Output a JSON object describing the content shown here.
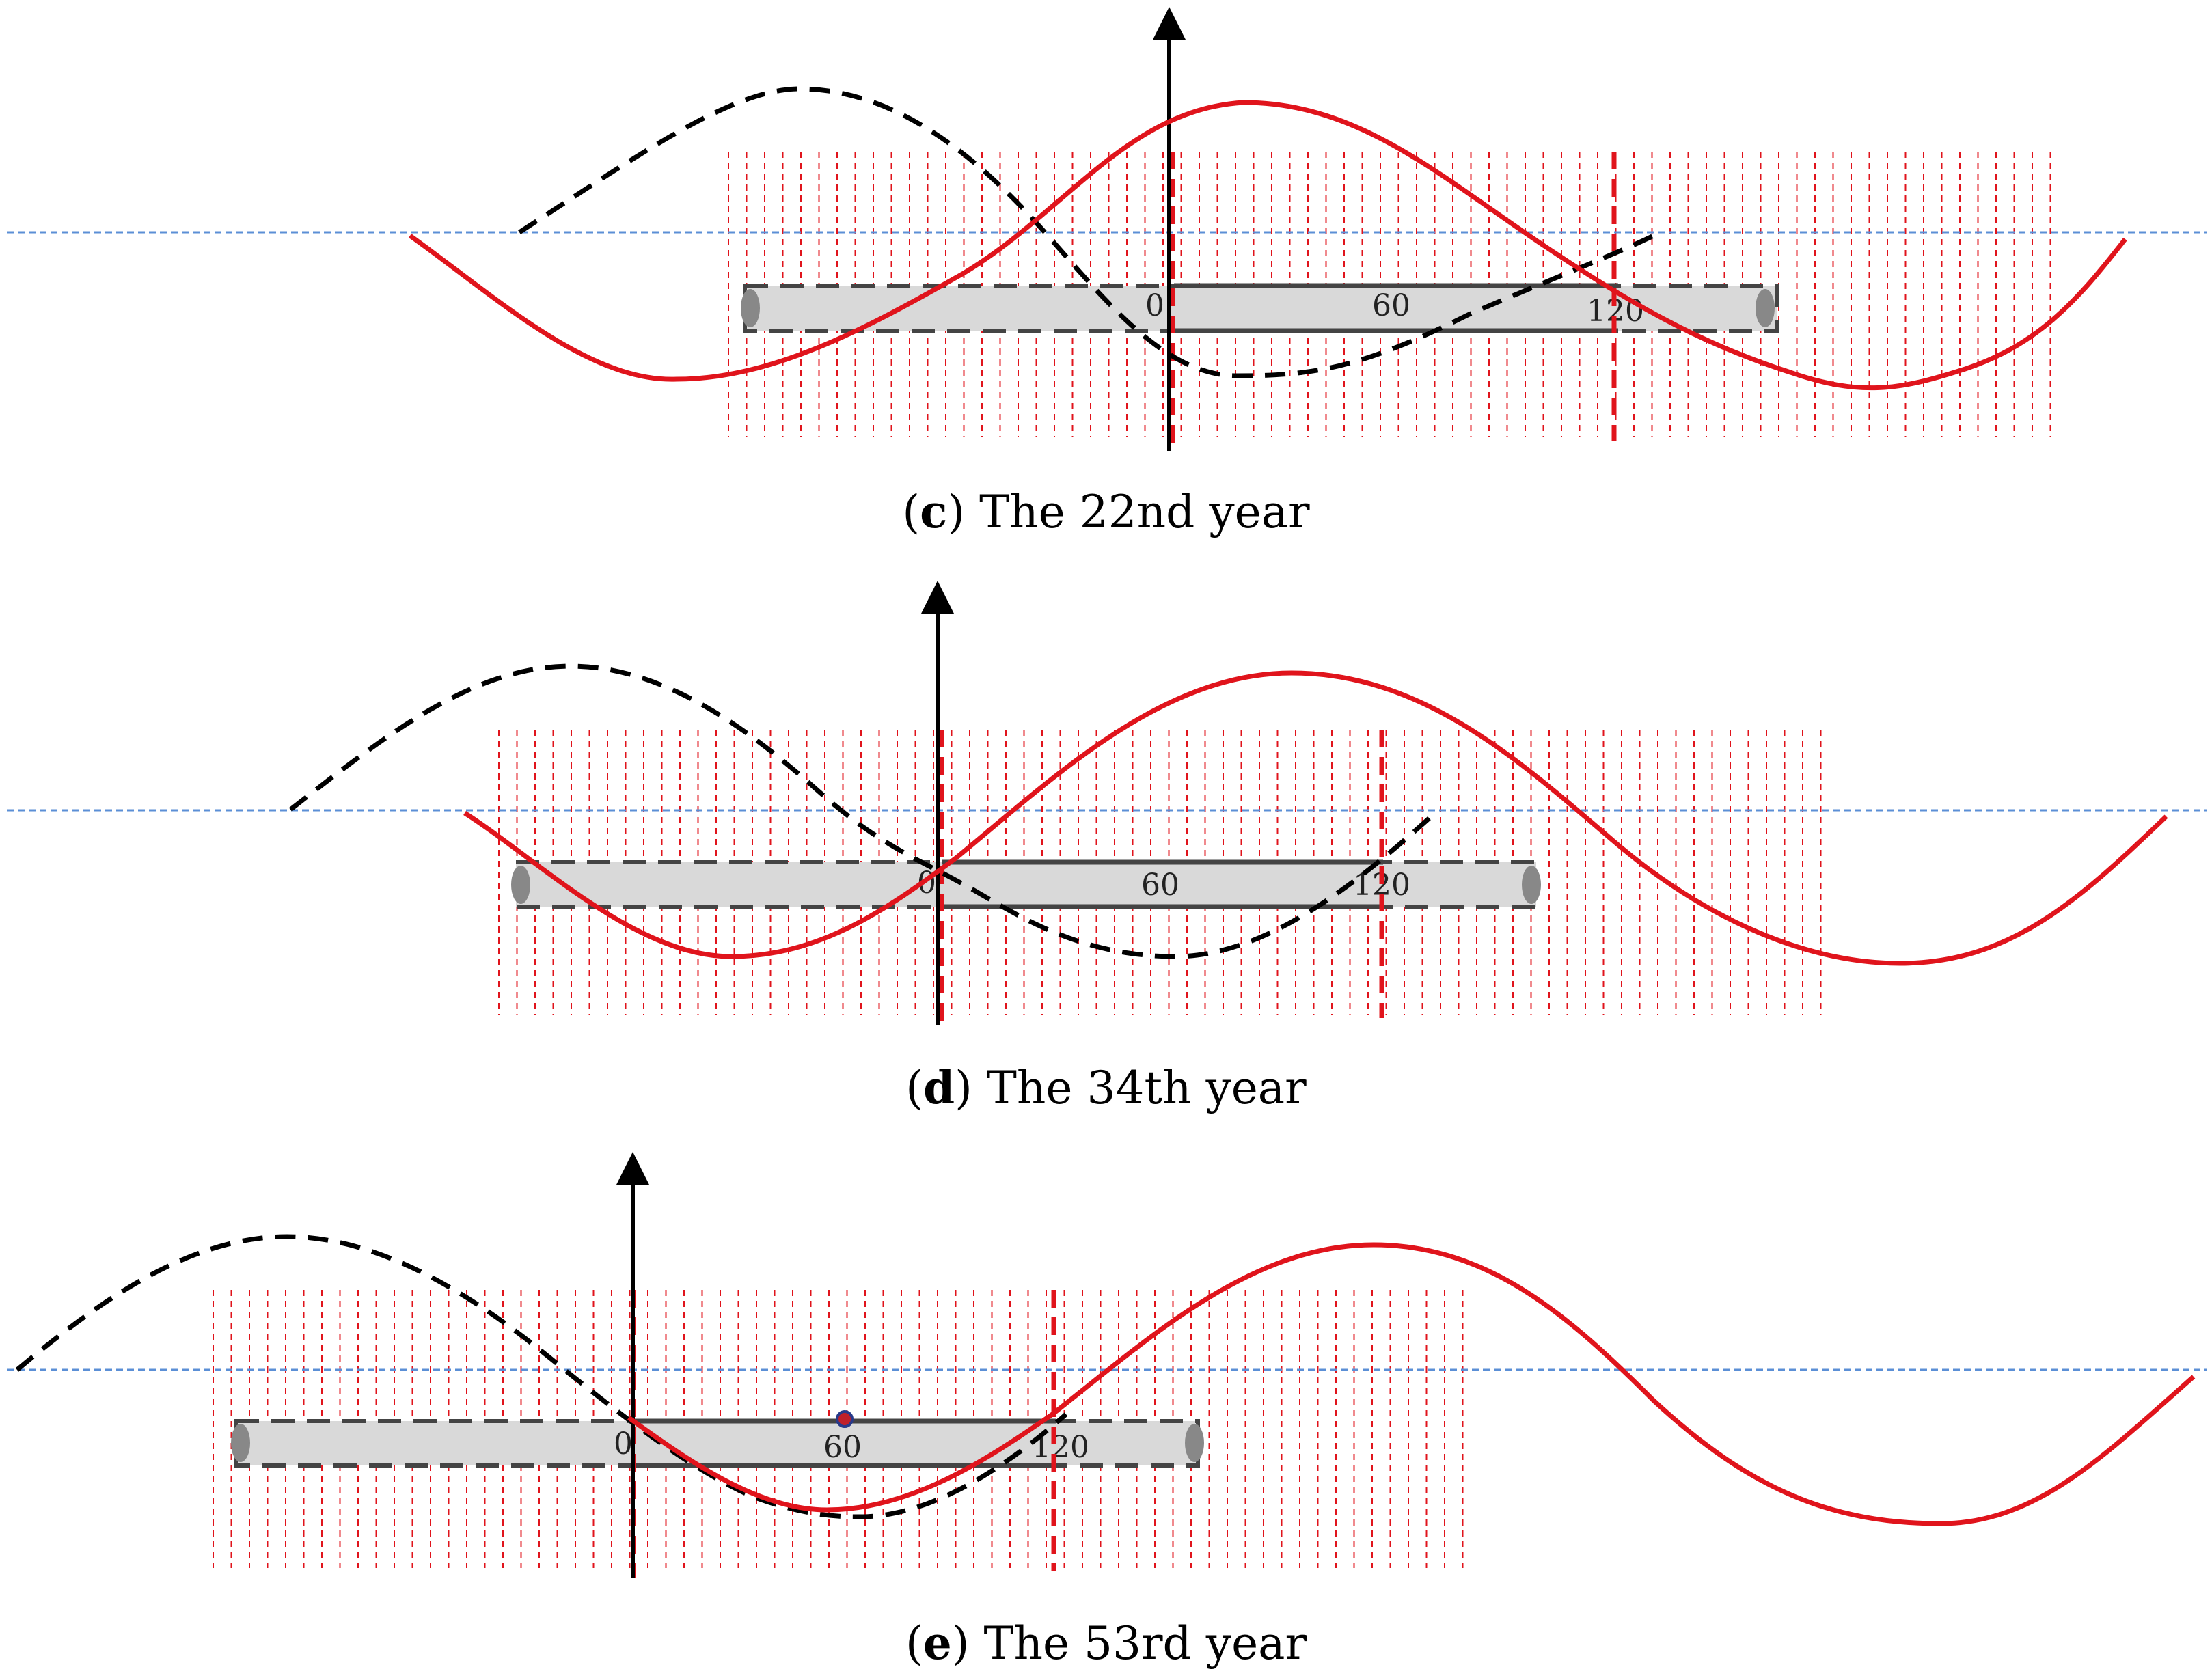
{
  "panels": [
    {
      "letter": "c",
      "caption_rest": "The 22nd year",
      "ticks": [
        "0",
        "60",
        "120"
      ],
      "highlight_marker": false
    },
    {
      "letter": "d",
      "caption_rest": "The 34th year",
      "ticks": [
        "0",
        "60",
        "120"
      ],
      "highlight_marker": false
    },
    {
      "letter": "e",
      "caption_rest": "The 53rd year",
      "ticks": [
        "0",
        "60",
        "120"
      ],
      "highlight_marker": true
    }
  ],
  "caption_parts": {
    "open": "(",
    "close": ")"
  },
  "colors": {
    "red_wave": "#e0141c",
    "black_wave": "#000000",
    "blue_reference": "#5b8fd6",
    "vertical_grid": "#e0141c",
    "scale_bar_fill": "#d9d9d9",
    "scale_bar_stroke": "#444444",
    "marker": "#c0202a"
  }
}
